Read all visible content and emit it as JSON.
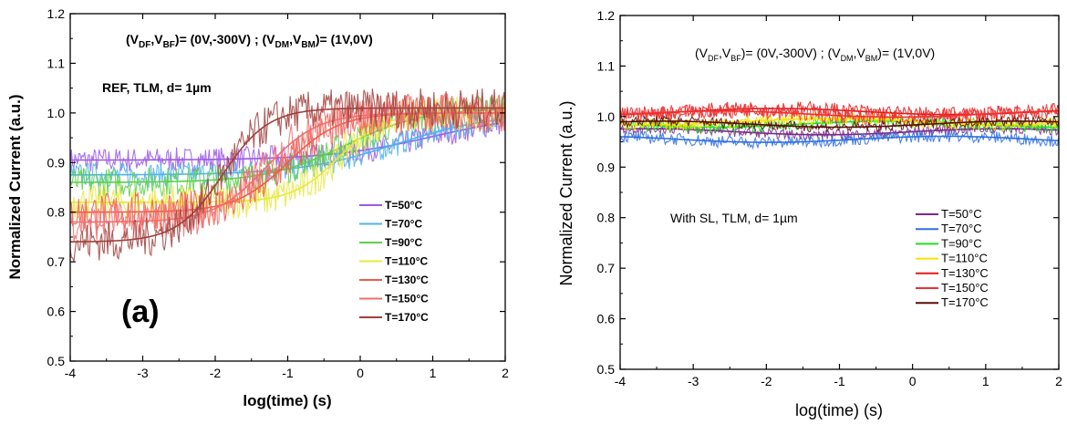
{
  "chart_data": [
    {
      "type": "line",
      "panel_label": "(a)",
      "xlabel": "log(time) (s)",
      "ylabel": "Normalized Current (a.u.)",
      "xlim": [
        -4,
        2
      ],
      "ylim": [
        0.5,
        1.2
      ],
      "xticks": [
        "-4",
        "-3",
        "-2",
        "-1",
        "0",
        "1",
        "2"
      ],
      "yticks": [
        "0.5",
        "0.6",
        "0.7",
        "0.8",
        "0.9",
        "1.0",
        "1.1",
        "1.2"
      ],
      "annotation_bias": {
        "pre1": "(V",
        "sub1": "DF",
        "mid1": ",V",
        "sub2": "BF",
        "mid2": ")= (0V,-300V) ; (V",
        "sub3": "DM",
        "mid3": ",V",
        "sub4": "BM",
        "post": ")= (1V,0V)"
      },
      "annotation_sample": "REF, TLM, d= 1µm",
      "legend_position": "bottom-right",
      "series": [
        {
          "name": "T=50°C",
          "color": "#9b59e6",
          "start": 0.905,
          "end": 1.0,
          "mid_log_t": 1.0,
          "width": 1.6,
          "noise": 0.025
        },
        {
          "name": "T=70°C",
          "color": "#4fb3e8",
          "start": 0.875,
          "end": 1.0,
          "mid_log_t": 0.5,
          "width": 1.5,
          "noise": 0.025
        },
        {
          "name": "T=90°C",
          "color": "#5ecf4a",
          "start": 0.86,
          "end": 1.01,
          "mid_log_t": -0.2,
          "width": 1.2,
          "noise": 0.03
        },
        {
          "name": "T=110°C",
          "color": "#e8e83a",
          "start": 0.82,
          "end": 1.0,
          "mid_log_t": -0.3,
          "width": 0.7,
          "noise": 0.035
        },
        {
          "name": "T=130°C",
          "color": "#f05a4a",
          "start": 0.8,
          "end": 1.0,
          "mid_log_t": -1.0,
          "width": 0.8,
          "noise": 0.04
        },
        {
          "name": "T=150°C",
          "color": "#f06e6e",
          "start": 0.78,
          "end": 1.0,
          "mid_log_t": -1.3,
          "width": 0.8,
          "noise": 0.04
        },
        {
          "name": "T=170°C",
          "color": "#a0403c",
          "start": 0.74,
          "end": 1.01,
          "mid_log_t": -1.9,
          "width": 0.7,
          "noise": 0.04
        }
      ]
    },
    {
      "type": "line",
      "xlabel": "log(time) (s)",
      "ylabel": "Normalized Current (a.u.)",
      "xlim": [
        -4,
        2
      ],
      "ylim": [
        0.5,
        1.2
      ],
      "xticks": [
        "-4",
        "-3",
        "-2",
        "-1",
        "0",
        "1",
        "2"
      ],
      "yticks": [
        "0.5",
        "0.6",
        "0.7",
        "0.8",
        "0.9",
        "1.0",
        "1.1",
        "1.2"
      ],
      "annotation_bias": {
        "pre1": "(V",
        "sub1": "DF",
        "mid1": ",V",
        "sub2": "BF",
        "mid2": ")= (0V,-300V) ; (V",
        "sub3": "DM",
        "mid3": ",V",
        "sub4": "BM",
        "post": ")= (1V,0V)"
      },
      "annotation_sample": "With SL, TLM, d= 1µm",
      "legend_position": "bottom-right",
      "series": [
        {
          "name": "T=50°C",
          "color": "#7a2a8c",
          "level": 0.97,
          "noise": 0.01
        },
        {
          "name": "T=70°C",
          "color": "#2f6fe0",
          "level": 0.955,
          "noise": 0.012
        },
        {
          "name": "T=90°C",
          "color": "#22dd22",
          "level": 0.985,
          "noise": 0.012
        },
        {
          "name": "T=110°C",
          "color": "#f5e400",
          "level": 0.99,
          "noise": 0.012
        },
        {
          "name": "T=130°C",
          "color": "#e01b1b",
          "level": 1.01,
          "noise": 0.015
        },
        {
          "name": "T=150°C",
          "color": "#f03030",
          "level": 1.005,
          "noise": 0.015
        },
        {
          "name": "T=170°C",
          "color": "#5a0c0c",
          "level": 0.985,
          "noise": 0.01
        }
      ]
    }
  ]
}
